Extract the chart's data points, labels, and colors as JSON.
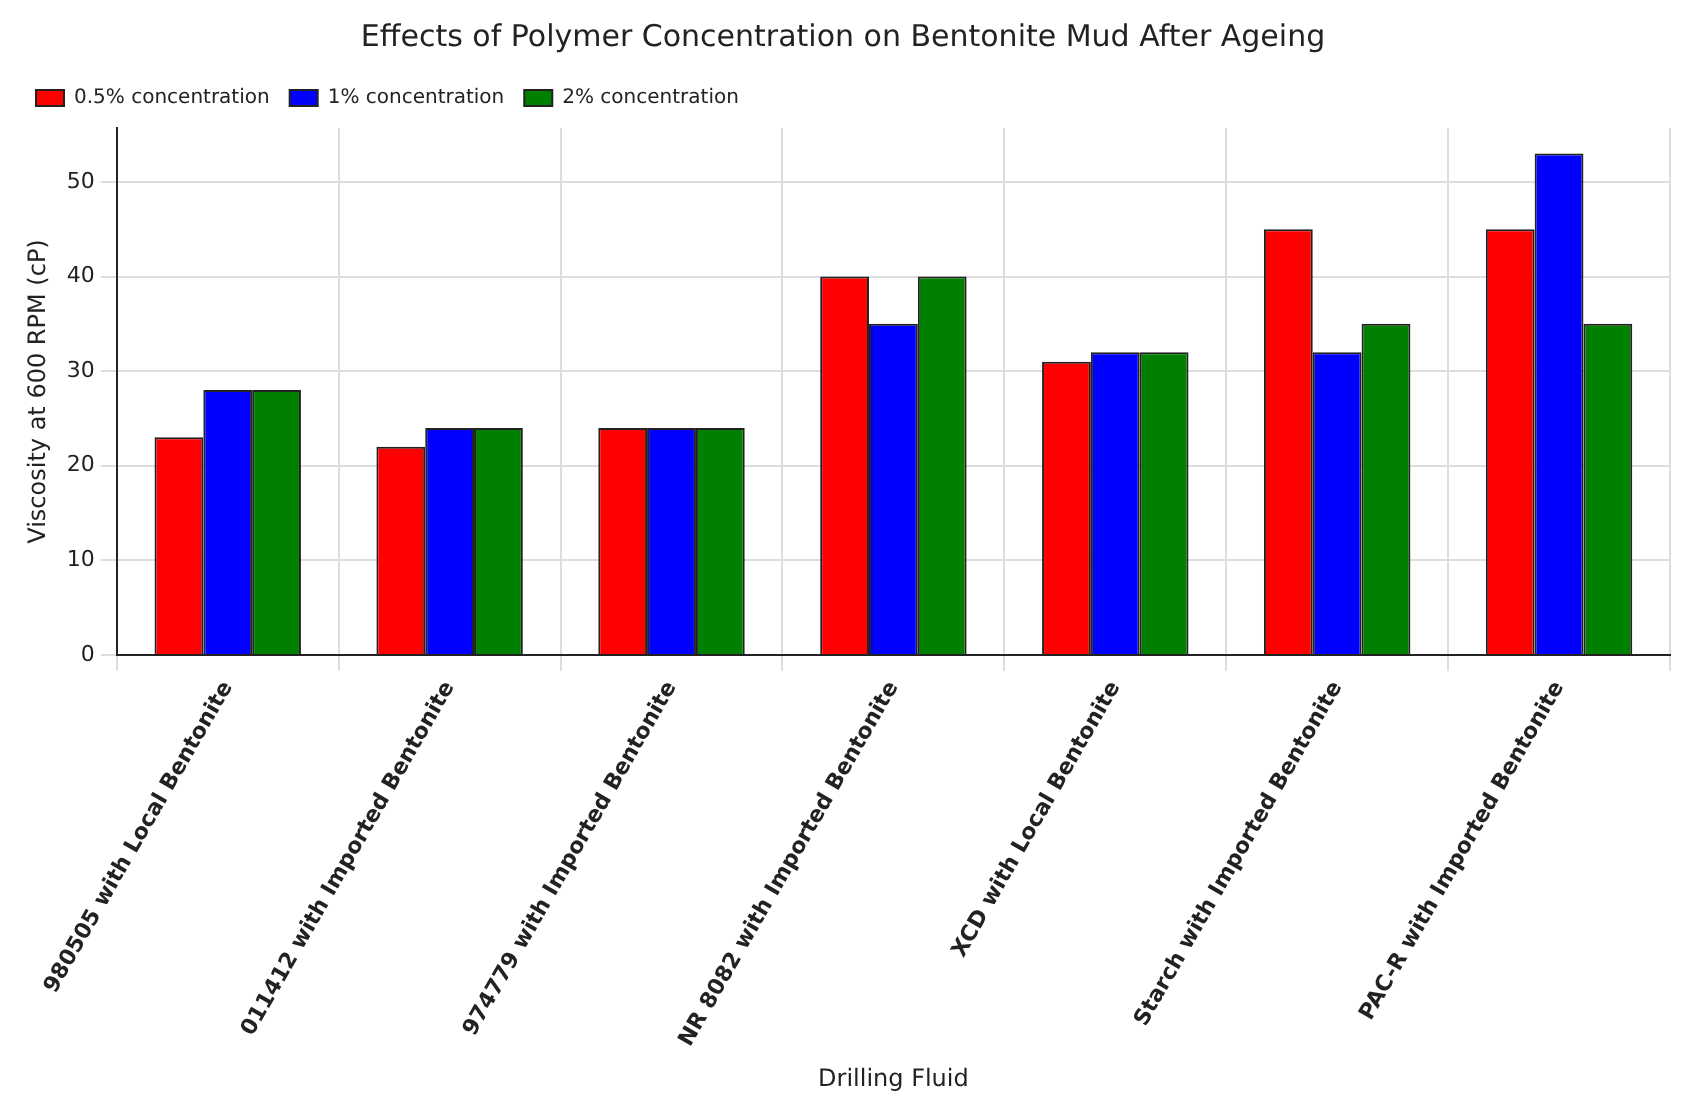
{
  "chart_data": {
    "type": "bar",
    "title": "Effects of Polymer Concentration on Bentonite Mud After Ageing",
    "xlabel": "Drilling Fluid",
    "ylabel": "Viscosity at 600 RPM (cP)",
    "categories": [
      "980505 with Local Bentonite",
      "011412 with Imported Bentonite",
      "974779 with Imported Bentonite",
      "NR 8082 with Imported Bentonite",
      "XCD with Local Bentonite",
      "Starch with Imported Bentonite",
      "PAC-R with Imported Bentonite"
    ],
    "series": [
      {
        "name": "0.5% concentration",
        "color": "#ff0000",
        "values": [
          23,
          22,
          24,
          40,
          31,
          45,
          45
        ]
      },
      {
        "name": "1% concentration",
        "color": "#0000ff",
        "values": [
          28,
          24,
          24,
          35,
          32,
          32,
          53
        ]
      },
      {
        "name": "2% concentration",
        "color": "#008000",
        "values": [
          28,
          24,
          24,
          40,
          32,
          35,
          35
        ]
      }
    ],
    "ylim": [
      0,
      55.7
    ],
    "yticks": [
      0,
      10,
      20,
      30,
      40,
      50
    ],
    "grid": true,
    "legend": "top left"
  }
}
